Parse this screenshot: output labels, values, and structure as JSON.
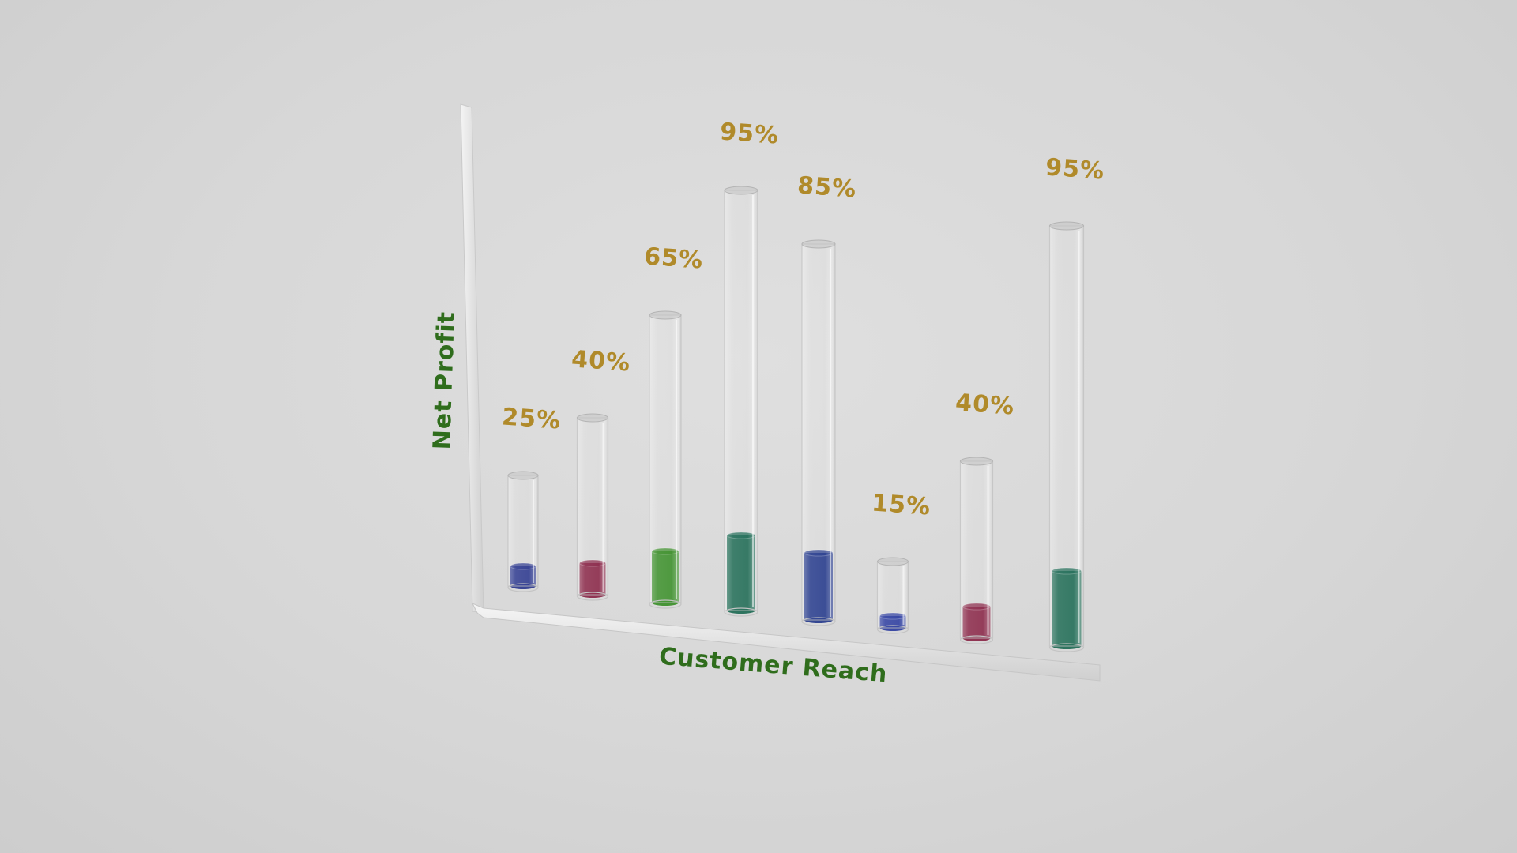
{
  "chart_data": {
    "type": "bar",
    "style": "3d-glass-tubes",
    "xlabel": "Customer Reach",
    "ylabel": "Net Profit",
    "ylim": [
      0,
      100
    ],
    "grid": false,
    "legend": "none",
    "values": [
      25,
      40,
      65,
      95,
      85,
      15,
      40,
      95
    ],
    "labels": [
      "25%",
      "40%",
      "65%",
      "95%",
      "85%",
      "15%",
      "40%",
      "95%"
    ],
    "fill_colors": [
      "#2e3a8f",
      "#8a2748",
      "#3c8f2a",
      "#1f6b55",
      "#263b8c",
      "#2e3ea0",
      "#8a2748",
      "#1f6b55"
    ],
    "label_color": "#b08a2a",
    "axis_title_color": "#2f6d1c"
  }
}
